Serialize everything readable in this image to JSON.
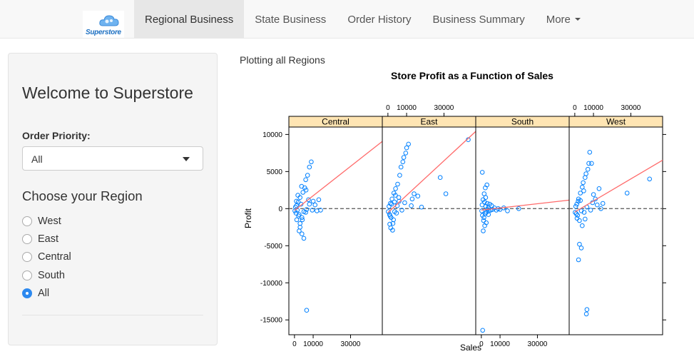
{
  "brand": {
    "name": "Superstore"
  },
  "nav": {
    "tabs": [
      {
        "label": "Regional Business",
        "active": true
      },
      {
        "label": "State Business",
        "active": false
      },
      {
        "label": "Order History",
        "active": false
      },
      {
        "label": "Business Summary",
        "active": false
      },
      {
        "label": "More",
        "active": false,
        "dropdown": true
      }
    ]
  },
  "sidebar": {
    "welcome": "Welcome to Superstore",
    "order_priority_label": "Order Priority:",
    "order_priority_value": "All",
    "region_title": "Choose your Region",
    "regions": [
      {
        "label": "West",
        "selected": false
      },
      {
        "label": "East",
        "selected": false
      },
      {
        "label": "Central",
        "selected": false
      },
      {
        "label": "South",
        "selected": false
      },
      {
        "label": "All",
        "selected": true
      }
    ]
  },
  "main": {
    "note": "Plotting all Regions"
  },
  "colors": {
    "point": "#0080ff",
    "fit_line": "#ff6a6a",
    "strip": "#ffe5b3",
    "accent": "#2d89ef"
  },
  "chart_data": {
    "type": "scatter",
    "title": "Store Profit as a Function of Sales",
    "xlabel": "Sales",
    "ylabel": "Profit",
    "xlim": [
      -3000,
      47000
    ],
    "ylim": [
      -17000,
      11000
    ],
    "x_ticks": [
      0,
      10000,
      30000
    ],
    "y_ticks": [
      10000,
      5000,
      0,
      -5000,
      -10000,
      -15000
    ],
    "reference_line_y": 0,
    "panels": [
      {
        "name": "Central",
        "fit": {
          "slope": 0.198,
          "intercept": -240
        },
        "points": [
          [
            200,
            -300
          ],
          [
            500,
            200
          ],
          [
            800,
            -600
          ],
          [
            1100,
            400
          ],
          [
            1500,
            -200
          ],
          [
            2000,
            900
          ],
          [
            2500,
            -800
          ],
          [
            3000,
            1500
          ],
          [
            3500,
            600
          ],
          [
            4000,
            -1200
          ],
          [
            4500,
            2200
          ],
          [
            5000,
            -400
          ],
          [
            5500,
            2800
          ],
          [
            6000,
            3900
          ],
          [
            6500,
            -100
          ],
          [
            7000,
            4500
          ],
          [
            7500,
            1200
          ],
          [
            8000,
            5600
          ],
          [
            9000,
            6300
          ],
          [
            10000,
            1000
          ],
          [
            11000,
            500
          ],
          [
            12000,
            -300
          ],
          [
            13000,
            1200
          ],
          [
            14000,
            -200
          ],
          [
            2500,
            -3000
          ],
          [
            4000,
            -3400
          ],
          [
            5000,
            -4000
          ],
          [
            3000,
            -2500
          ],
          [
            6500,
            -13700
          ],
          [
            1200,
            -1500
          ],
          [
            1800,
            1800
          ],
          [
            2200,
            -1000
          ],
          [
            3800,
            3000
          ],
          [
            4200,
            -1500
          ],
          [
            6000,
            -500
          ],
          [
            8000,
            600
          ],
          [
            9500,
            -200
          ],
          [
            1000,
            1000
          ],
          [
            3000,
            -2000
          ],
          [
            6200,
            2500
          ]
        ]
      },
      {
        "name": "East",
        "fit": {
          "slope": 0.233,
          "intercept": -540
        },
        "points": [
          [
            200,
            -400
          ],
          [
            600,
            300
          ],
          [
            900,
            -800
          ],
          [
            1300,
            700
          ],
          [
            1700,
            -1200
          ],
          [
            2200,
            1300
          ],
          [
            2700,
            -2000
          ],
          [
            3200,
            2100
          ],
          [
            3600,
            -400
          ],
          [
            4100,
            2700
          ],
          [
            4600,
            -600
          ],
          [
            5200,
            3300
          ],
          [
            5800,
            1500
          ],
          [
            6300,
            4500
          ],
          [
            7000,
            5600
          ],
          [
            8000,
            6300
          ],
          [
            8500,
            6900
          ],
          [
            9500,
            7500
          ],
          [
            10000,
            8200
          ],
          [
            11000,
            8700
          ],
          [
            12500,
            400
          ],
          [
            13000,
            1300
          ],
          [
            14000,
            2000
          ],
          [
            16000,
            1700
          ],
          [
            18000,
            200
          ],
          [
            28000,
            4200
          ],
          [
            31000,
            2000
          ],
          [
            43000,
            9300
          ],
          [
            1500,
            -2600
          ],
          [
            2500,
            -2900
          ],
          [
            1000,
            -2100
          ],
          [
            3000,
            -1500
          ],
          [
            5000,
            400
          ],
          [
            6000,
            1000
          ],
          [
            7500,
            -200
          ],
          [
            9000,
            800
          ],
          [
            4000,
            1800
          ],
          [
            2000,
            600
          ],
          [
            1200,
            -1000
          ],
          [
            3500,
            900
          ]
        ]
      },
      {
        "name": "South",
        "fit": {
          "slope": 0.0286,
          "intercept": -200
        },
        "points": [
          [
            200,
            -300
          ],
          [
            400,
            500
          ],
          [
            600,
            -900
          ],
          [
            900,
            1200
          ],
          [
            1200,
            -1600
          ],
          [
            1500,
            2000
          ],
          [
            1800,
            -2300
          ],
          [
            2100,
            2800
          ],
          [
            2400,
            300
          ],
          [
            2700,
            -500
          ],
          [
            3000,
            3200
          ],
          [
            3300,
            -100
          ],
          [
            3600,
            100
          ],
          [
            4000,
            -300
          ],
          [
            4500,
            600
          ],
          [
            5000,
            -200
          ],
          [
            5500,
            400
          ],
          [
            6000,
            -100
          ],
          [
            7000,
            100
          ],
          [
            8000,
            -200
          ],
          [
            9000,
            0
          ],
          [
            10000,
            -100
          ],
          [
            12000,
            100
          ],
          [
            14000,
            -300
          ],
          [
            20000,
            0
          ],
          [
            500,
            4900
          ],
          [
            700,
            -16400
          ],
          [
            1000,
            -3000
          ],
          [
            1400,
            -1200
          ],
          [
            1700,
            900
          ],
          [
            2000,
            -700
          ],
          [
            2300,
            1500
          ],
          [
            2600,
            -1900
          ],
          [
            3200,
            700
          ],
          [
            3800,
            -800
          ]
        ]
      },
      {
        "name": "West",
        "fit": {
          "slope": 0.1486,
          "intercept": -450
        },
        "points": [
          [
            200,
            -500
          ],
          [
            500,
            300
          ],
          [
            800,
            -700
          ],
          [
            1100,
            600
          ],
          [
            1500,
            -900
          ],
          [
            2000,
            1300
          ],
          [
            2500,
            -1600
          ],
          [
            3000,
            2100
          ],
          [
            3500,
            -300
          ],
          [
            4000,
            2900
          ],
          [
            4500,
            3500
          ],
          [
            5000,
            -500
          ],
          [
            5500,
            4200
          ],
          [
            6000,
            4700
          ],
          [
            6500,
            200
          ],
          [
            7000,
            5300
          ],
          [
            7500,
            6100
          ],
          [
            8000,
            7600
          ],
          [
            9000,
            6100
          ],
          [
            10000,
            1900
          ],
          [
            11000,
            1300
          ],
          [
            12000,
            500
          ],
          [
            13000,
            2700
          ],
          [
            14000,
            0
          ],
          [
            15000,
            700
          ],
          [
            28000,
            2100
          ],
          [
            40000,
            4000
          ],
          [
            2500,
            -4800
          ],
          [
            3500,
            -5300
          ],
          [
            2000,
            -6900
          ],
          [
            6500,
            -13600
          ],
          [
            6200,
            -14200
          ],
          [
            4000,
            -2300
          ],
          [
            5500,
            -1400
          ],
          [
            3000,
            1100
          ],
          [
            8500,
            -200
          ],
          [
            9500,
            800
          ],
          [
            1200,
            -1300
          ],
          [
            1800,
            1000
          ],
          [
            4800,
            2400
          ]
        ]
      }
    ]
  }
}
